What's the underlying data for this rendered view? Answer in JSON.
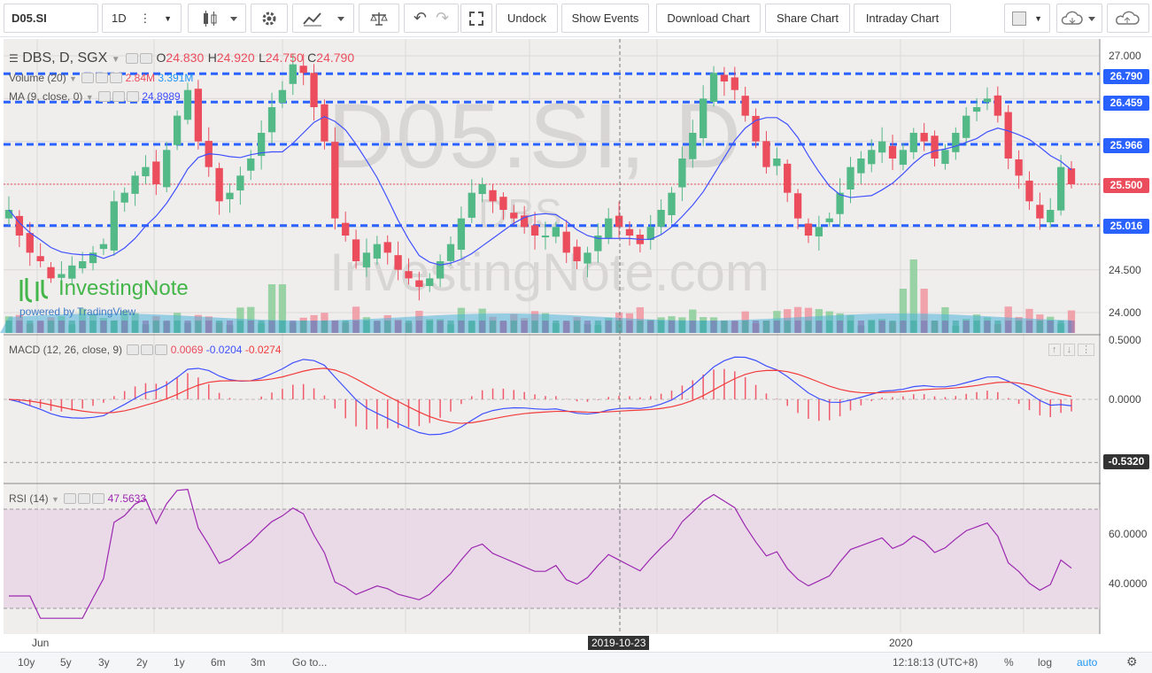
{
  "toolbar": {
    "symbol": "D05.SI",
    "interval": "1D",
    "buttons": [
      "Undock",
      "Show Events",
      "Download Chart",
      "Share Chart",
      "Intraday Chart"
    ]
  },
  "legend": {
    "title": "DBS, D, SGX",
    "open_label": "O",
    "open": "24.830",
    "high_label": "H",
    "high": "24.920",
    "low_label": "L",
    "low": "24.750",
    "close_label": "C",
    "close": "24.790",
    "volume_label": "Volume (20)",
    "volume_val": "2.84M",
    "volume_ma": "3.391M",
    "ma_label": "MA (9, close, 0)",
    "ma_val": "24.8989",
    "macd_label": "MACD (12, 26, close, 9)",
    "macd_hist": "0.0069",
    "macd_line": "-0.0204",
    "macd_signal": "-0.0274",
    "rsi_label": "RSI (14)",
    "rsi_val": "47.5633"
  },
  "watermark": {
    "symbol": "D05.SI, D",
    "name": "DBS",
    "brand": "InvestingNote.com"
  },
  "logo": {
    "name": "InvestingNote",
    "powered": "powered by TradingView"
  },
  "price_axis": {
    "ticks": [
      "27.000",
      "24.500",
      "24.000"
    ],
    "tags": {
      "line1": "26.790",
      "line2": "26.459",
      "line3": "25.966",
      "last": "25.500",
      "line4": "25.016"
    }
  },
  "macd_axis": {
    "ticks": [
      "0.5000",
      "0.0000"
    ],
    "tag": "-0.5320"
  },
  "rsi_axis": {
    "ticks": [
      "60.0000",
      "40.0000"
    ]
  },
  "time_axis": {
    "jun": "Jun",
    "year": "2020",
    "crosshair": "2019-10-23"
  },
  "bottom": {
    "ranges": [
      "10y",
      "5y",
      "3y",
      "2y",
      "1y",
      "6m",
      "3m"
    ],
    "goto": "Go to...",
    "time": "12:18:13 (UTC+8)",
    "percent": "%",
    "log": "log",
    "auto": "auto"
  },
  "colors": {
    "up": "#53b987",
    "down": "#eb4d5c",
    "ma": "#3f51ff",
    "level": "#2962ff",
    "macd": "#3f51ff",
    "signal": "#f23b3b",
    "rsi": "#9c27b0",
    "rsi_band": "#e8d5e6"
  },
  "chart_data": [
    {
      "type": "candlestick",
      "title": "DBS, D, SGX",
      "levels": [
        26.79,
        26.459,
        25.966,
        25.016
      ],
      "last": 25.5,
      "ylim": [
        23.8,
        27.1
      ],
      "closes": [
        25.2,
        24.9,
        24.7,
        24.6,
        24.4,
        24.45,
        24.55,
        24.6,
        24.7,
        24.8,
        25.3,
        25.4,
        25.6,
        25.7,
        25.5,
        25.9,
        26.3,
        26.6,
        26.0,
        25.7,
        25.3,
        25.4,
        25.6,
        25.8,
        26.1,
        26.4,
        26.6,
        26.9,
        26.8,
        26.4,
        26.0,
        25.1,
        24.9,
        24.6,
        24.7,
        24.8,
        24.7,
        24.5,
        24.4,
        24.3,
        24.4,
        24.6,
        24.8,
        25.1,
        25.4,
        25.5,
        25.3,
        25.2,
        25.1,
        25.0,
        24.9,
        24.9,
        25.0,
        24.7,
        24.6,
        24.7,
        24.9,
        25.1,
        25.0,
        24.9,
        24.8,
        25.0,
        25.2,
        25.4,
        25.8,
        26.1,
        26.5,
        26.8,
        26.7,
        26.6,
        26.3,
        26.0,
        25.7,
        25.8,
        25.4,
        25.1,
        24.9,
        25.0,
        25.1,
        25.4,
        25.7,
        25.8,
        25.9,
        26.0,
        25.8,
        25.9,
        26.1,
        26.0,
        25.8,
        25.9,
        26.1,
        26.3,
        26.4,
        26.5,
        26.3,
        25.8,
        25.6,
        25.3,
        25.1,
        25.2,
        25.7,
        25.5
      ]
    },
    {
      "type": "line",
      "title": "MACD (12, 26, close, 9)",
      "ticks": [
        0.5,
        0.0,
        -0.532
      ]
    },
    {
      "type": "line",
      "title": "RSI (14)",
      "ticks": [
        60,
        40
      ],
      "bands": [
        30,
        70
      ]
    }
  ]
}
